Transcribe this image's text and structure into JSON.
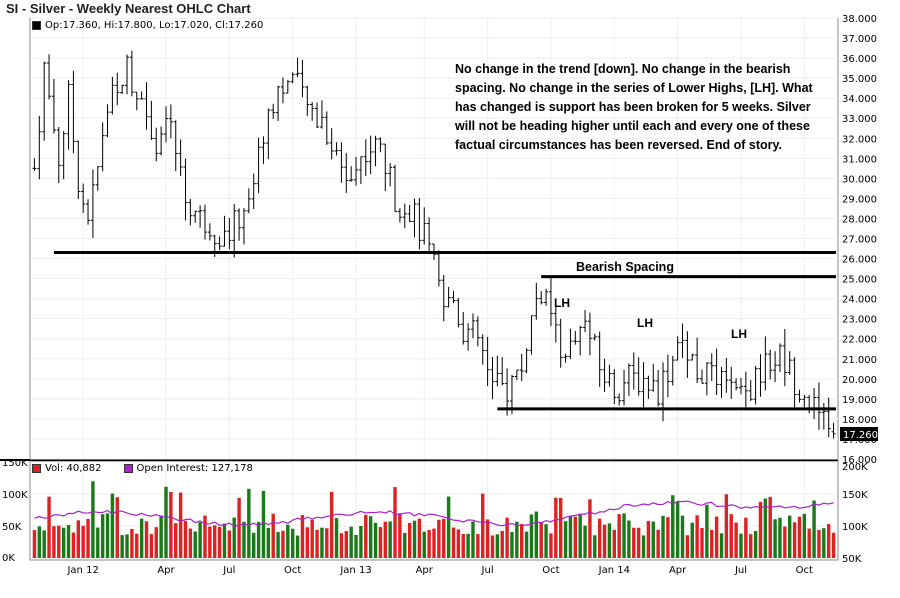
{
  "header": {
    "title": "SI - Silver - Weekly Nearest OHLC Chart",
    "ohlc": "Op:17.360, Hi:17.800, Lo:17.020, Cl:17.260"
  },
  "volume_legend": {
    "vol": "Vol: 40,882",
    "oi": "Open Interest: 127,178"
  },
  "annotations": {
    "note": "No change in the trend [down].  No change in the bearish spacing.  No change in the series of Lower Highs, [LH].  What has changed is support has been broken for 5 weeks.  Silver will not be heading higher until each and every one of these factual circumstances has been reversed.  End of story.",
    "bearish_spacing": "Bearish Spacing",
    "lh1": "LH",
    "lh2": "LH",
    "lh3": "LH"
  },
  "colors": {
    "up_volume": "#1a7a1a",
    "down_volume": "#dd2222",
    "open_interest": "#aa22cc",
    "price_bar": "#000000"
  },
  "chart_data": {
    "type": "ohlc",
    "title": "SI - Silver - Weekly Nearest OHLC Chart",
    "last_price_label": "17.260",
    "x_tick_labels": [
      "Jan 12",
      "Apr",
      "Jul",
      "Oct",
      "Jan 13",
      "Apr",
      "Jul",
      "Oct",
      "Jan 14",
      "Apr",
      "Jul",
      "Oct"
    ],
    "price_axis": {
      "ylim": [
        16,
        38
      ],
      "tick_labels": [
        "16.000",
        "17.000",
        "18.000",
        "19.000",
        "20.000",
        "21.000",
        "22.000",
        "23.000",
        "24.000",
        "25.000",
        "26.000",
        "27.000",
        "28.000",
        "29.000",
        "30.000",
        "31.000",
        "32.000",
        "33.000",
        "34.000",
        "35.000",
        "36.000",
        "37.000",
        "38.000"
      ]
    },
    "volume_axis": {
      "left_tick_labels": [
        "0K",
        "50K",
        "100K",
        "150K"
      ],
      "right_tick_labels": [
        "50K",
        "100K",
        "150K",
        "200K"
      ]
    },
    "levels": [
      {
        "name": "support-line-1",
        "price": 26.3,
        "from": "2011-12",
        "to": "2014-10"
      },
      {
        "name": "bearish-spacing-line",
        "price": 25.1,
        "from": "2013-08",
        "to": "2014-10"
      },
      {
        "name": "support-line-2",
        "price": 18.5,
        "from": "2013-06",
        "to": "2014-10"
      }
    ],
    "price_path": [
      {
        "t": 0,
        "p": 30.5
      },
      {
        "t": 2,
        "p": 35.5
      },
      {
        "t": 5,
        "p": 31.0
      },
      {
        "t": 7,
        "p": 34.0
      },
      {
        "t": 9,
        "p": 30.0
      },
      {
        "t": 11,
        "p": 28.0
      },
      {
        "t": 13,
        "p": 30.5
      },
      {
        "t": 16,
        "p": 34.5
      },
      {
        "t": 19,
        "p": 35.5
      },
      {
        "t": 22,
        "p": 34.0
      },
      {
        "t": 25,
        "p": 32.0
      },
      {
        "t": 28,
        "p": 32.5
      },
      {
        "t": 31,
        "p": 29.0
      },
      {
        "t": 34,
        "p": 28.0
      },
      {
        "t": 37,
        "p": 27.5
      },
      {
        "t": 39,
        "p": 27.0
      },
      {
        "t": 42,
        "p": 28.0
      },
      {
        "t": 45,
        "p": 30.0
      },
      {
        "t": 48,
        "p": 33.5
      },
      {
        "t": 50,
        "p": 34.5
      },
      {
        "t": 53,
        "p": 35.0
      },
      {
        "t": 56,
        "p": 33.5
      },
      {
        "t": 59,
        "p": 33.0
      },
      {
        "t": 62,
        "p": 31.0
      },
      {
        "t": 65,
        "p": 30.0
      },
      {
        "t": 68,
        "p": 31.5
      },
      {
        "t": 71,
        "p": 31.5
      },
      {
        "t": 74,
        "p": 29.0
      },
      {
        "t": 77,
        "p": 28.5
      },
      {
        "t": 80,
        "p": 27.0
      },
      {
        "t": 82,
        "p": 25.5
      },
      {
        "t": 84,
        "p": 23.5
      },
      {
        "t": 86,
        "p": 24.0
      },
      {
        "t": 88,
        "p": 22.5
      },
      {
        "t": 91,
        "p": 22.0
      },
      {
        "t": 94,
        "p": 19.5
      },
      {
        "t": 97,
        "p": 19.5
      },
      {
        "t": 100,
        "p": 20.5
      },
      {
        "t": 102,
        "p": 23.0
      },
      {
        "t": 104,
        "p": 24.5
      },
      {
        "t": 107,
        "p": 22.0
      },
      {
        "t": 110,
        "p": 21.5
      },
      {
        "t": 113,
        "p": 23.0
      },
      {
        "t": 116,
        "p": 20.5
      },
      {
        "t": 119,
        "p": 19.5
      },
      {
        "t": 122,
        "p": 20.0
      },
      {
        "t": 125,
        "p": 20.0
      },
      {
        "t": 128,
        "p": 19.5
      },
      {
        "t": 131,
        "p": 21.0
      },
      {
        "t": 133,
        "p": 21.8
      },
      {
        "t": 136,
        "p": 20.5
      },
      {
        "t": 139,
        "p": 20.0
      },
      {
        "t": 142,
        "p": 19.5
      },
      {
        "t": 145,
        "p": 19.0
      },
      {
        "t": 148,
        "p": 19.8
      },
      {
        "t": 151,
        "p": 21.0
      },
      {
        "t": 153,
        "p": 21.2
      },
      {
        "t": 156,
        "p": 20.0
      },
      {
        "t": 159,
        "p": 19.0
      },
      {
        "t": 161,
        "p": 18.0
      },
      {
        "t": 163,
        "p": 17.2
      },
      {
        "t": 164,
        "p": 17.3
      }
    ],
    "last_bar": {
      "open": 17.36,
      "high": 17.8,
      "low": 17.02,
      "close": 17.26
    }
  }
}
